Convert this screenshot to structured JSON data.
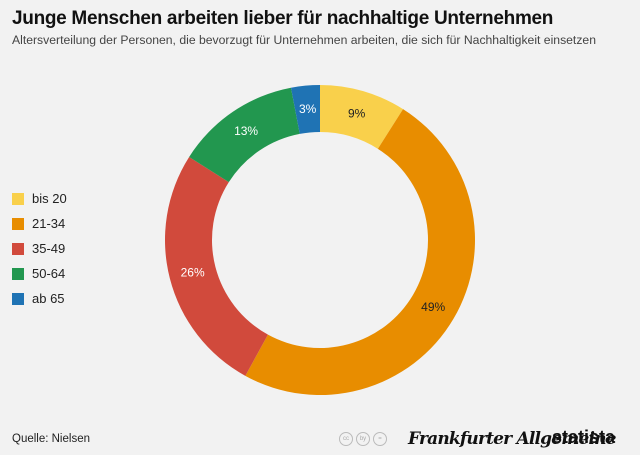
{
  "header": {
    "title": "Junge Menschen arbeiten lieber für nachhaltige Unternehmen",
    "subtitle": "Altersverteilung der Personen, die bevorzugt für Unternehmen arbeiten, die sich für Nachhaltigkeit einsetzen"
  },
  "chart_data": {
    "type": "pie",
    "title": "Junge Menschen arbeiten lieber für nachhaltige Unternehmen",
    "subtitle": "Altersverteilung der Personen, die bevorzugt für Unternehmen arbeiten, die sich für Nachhaltigkeit einsetzen",
    "donut": true,
    "categories": [
      "bis 20",
      "21-34",
      "35-49",
      "50-64",
      "ab 65"
    ],
    "values": [
      9,
      49,
      26,
      13,
      3
    ],
    "labels": [
      "9%",
      "49%",
      "26%",
      "13%",
      "3%"
    ],
    "colors": [
      "#f9d04b",
      "#e88d00",
      "#d14a3c",
      "#22974f",
      "#1f73b4"
    ],
    "label_colors": [
      "#222222",
      "#222222",
      "#ffffff",
      "#ffffff",
      "#ffffff"
    ],
    "legend_position": "left"
  },
  "footer": {
    "source": "Quelle: Nielsen",
    "cc_icons": [
      "cc",
      "by",
      "="
    ],
    "publisher": "Frankfurter Allgemeine",
    "brand": "statista"
  }
}
